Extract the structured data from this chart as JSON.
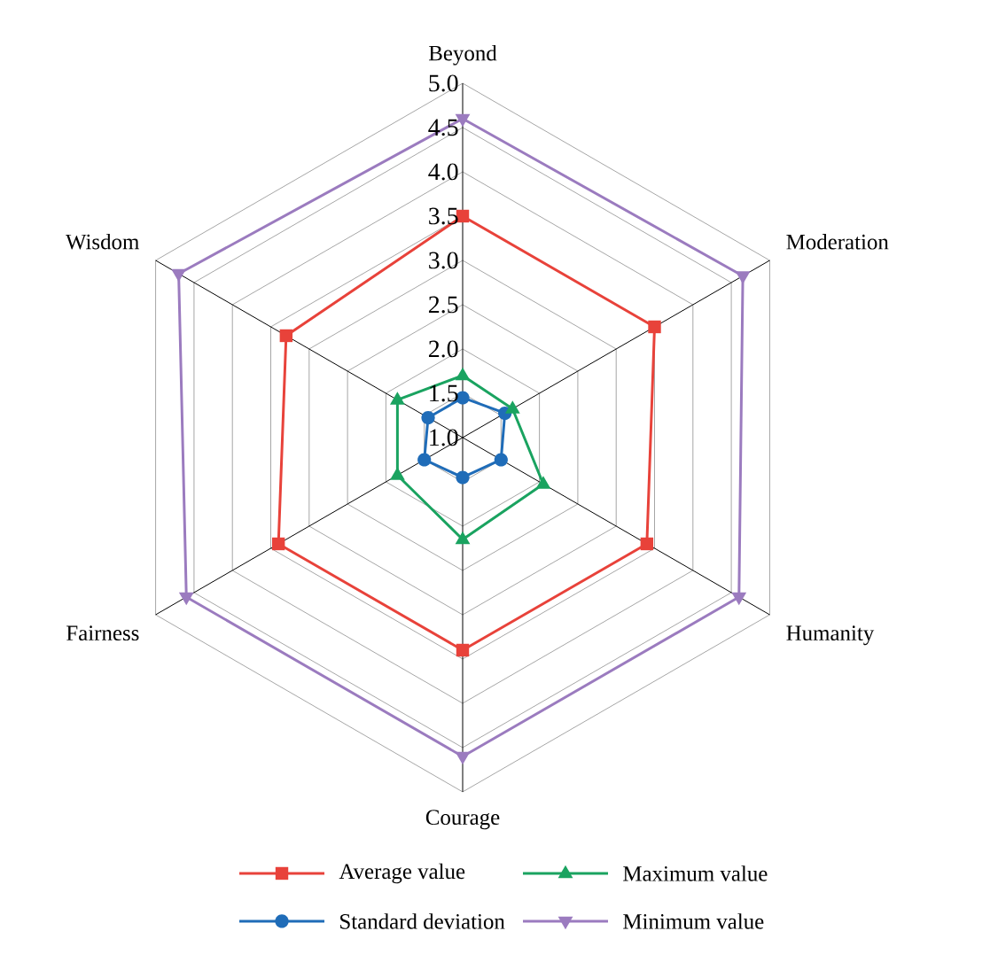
{
  "chart_data": {
    "type": "radar",
    "categories": [
      "Beyond",
      "Moderation",
      "Humanity",
      "Courage",
      "Fairness",
      "Wisdom"
    ],
    "ylim": [
      1,
      5
    ],
    "yticks": [
      {
        "value": 1,
        "label": "1.0"
      },
      {
        "value": 1.5,
        "label": "1.5"
      },
      {
        "value": 2,
        "label": "2.0"
      },
      {
        "value": 2.5,
        "label": "2.5"
      },
      {
        "value": 3,
        "label": "3.0"
      },
      {
        "value": 3.5,
        "label": "3.5"
      },
      {
        "value": 4,
        "label": "4.0"
      },
      {
        "value": 4.5,
        "label": "4.5"
      },
      {
        "value": 5,
        "label": "5.0"
      }
    ],
    "grid": true,
    "legend": "bottom",
    "line_style": "solid",
    "series": [
      {
        "name": "Average value",
        "color": "#e8423a",
        "marker": "square",
        "values": [
          3.5,
          3.5,
          3.4,
          3.4,
          3.4,
          3.3
        ]
      },
      {
        "name": "Standard deviation",
        "color": "#1f6cb8",
        "marker": "circle",
        "values": [
          1.45,
          1.55,
          1.5,
          1.45,
          1.5,
          1.45
        ]
      },
      {
        "name": "Maximum value",
        "color": "#1aa360",
        "marker": "triangle",
        "values": [
          1.7,
          1.65,
          2.05,
          2.15,
          1.85,
          1.85
        ]
      },
      {
        "name": "Minimum value",
        "color": "#9b7bbf",
        "marker": "triangle_down",
        "values": [
          4.6,
          4.65,
          4.6,
          4.6,
          4.6,
          4.7
        ]
      }
    ]
  }
}
